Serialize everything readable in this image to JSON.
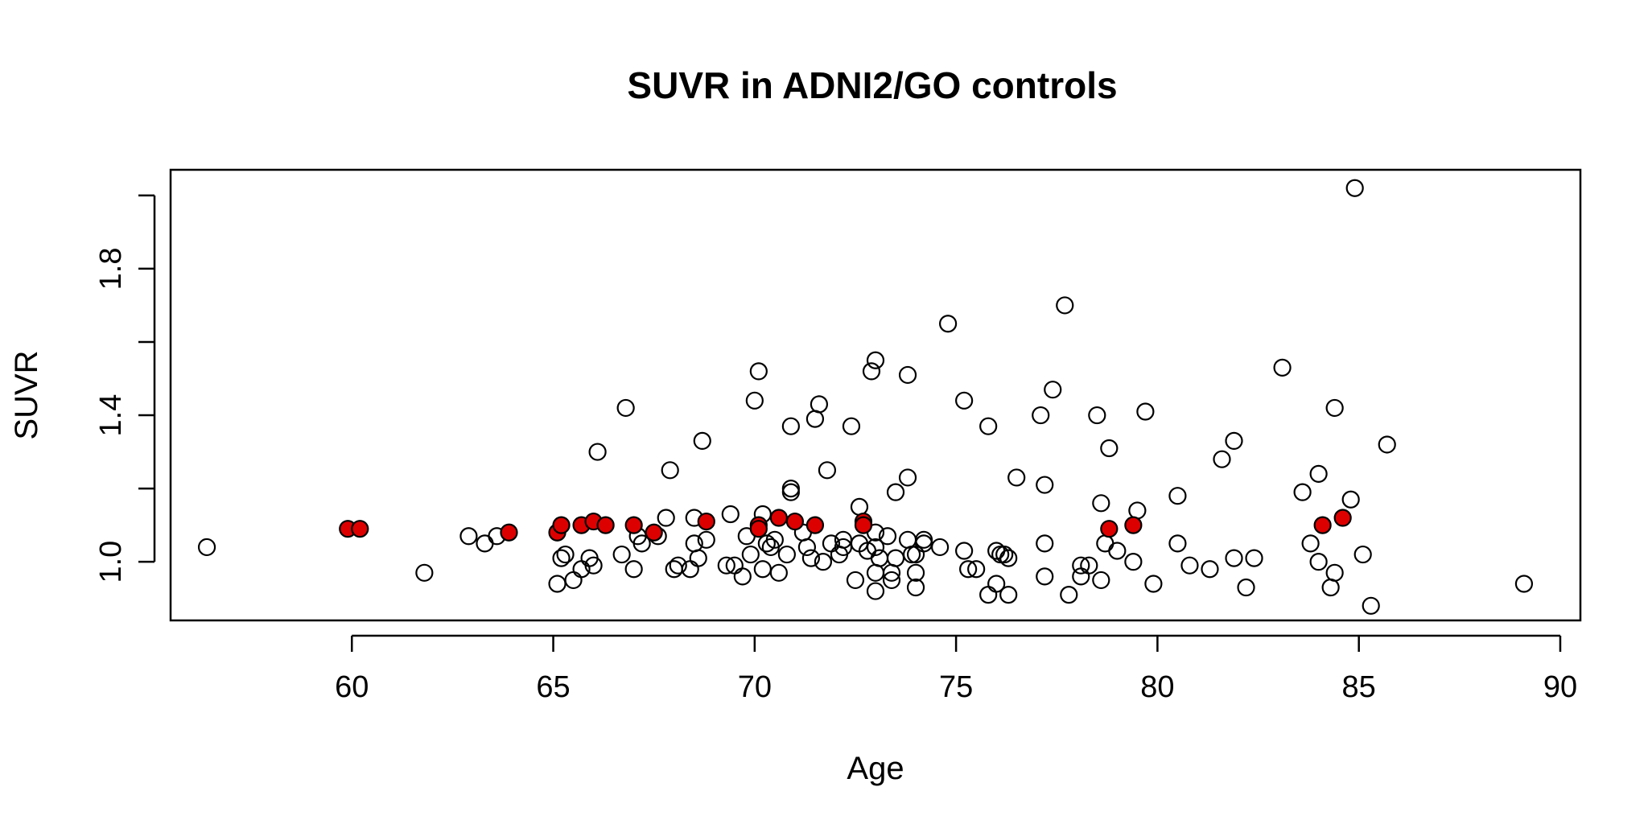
{
  "chart_data": {
    "type": "scatter",
    "title": "SUVR in ADNI2/GO controls",
    "xlabel": "Age",
    "ylabel": "SUVR",
    "xlim": [
      55.5,
      90.5
    ],
    "ylim": [
      0.84,
      2.07
    ],
    "x_ticks": [
      "60",
      "65",
      "70",
      "75",
      "80",
      "85",
      "90"
    ],
    "y_ticks": [
      "1.0",
      "1.2",
      "1.4",
      "1.6",
      "1.8",
      "2.0"
    ],
    "y_tick_labels_shown": [
      "1.0",
      "1.4",
      "1.8"
    ],
    "grid": false,
    "legend": "none",
    "colors": {
      "open_point": "#000000",
      "highlight_fill": "#dd0000"
    },
    "series": [
      {
        "marker": "open-circle",
        "points": [
          [
            56.4,
            1.04
          ],
          [
            61.8,
            0.97
          ],
          [
            62.9,
            1.07
          ],
          [
            63.3,
            1.05
          ],
          [
            63.6,
            1.07
          ],
          [
            65.1,
            0.94
          ],
          [
            65.2,
            1.01
          ],
          [
            65.3,
            1.02
          ],
          [
            65.5,
            0.95
          ],
          [
            65.7,
            0.98
          ],
          [
            65.9,
            1.01
          ],
          [
            66.0,
            0.99
          ],
          [
            66.1,
            1.3
          ],
          [
            66.7,
            1.02
          ],
          [
            66.8,
            1.42
          ],
          [
            67.0,
            0.98
          ],
          [
            67.1,
            1.07
          ],
          [
            67.2,
            1.05
          ],
          [
            67.6,
            1.07
          ],
          [
            67.8,
            1.12
          ],
          [
            67.9,
            1.25
          ],
          [
            68.0,
            0.98
          ],
          [
            68.1,
            0.99
          ],
          [
            68.4,
            0.98
          ],
          [
            68.5,
            1.05
          ],
          [
            68.5,
            1.12
          ],
          [
            68.6,
            1.01
          ],
          [
            68.7,
            1.33
          ],
          [
            68.8,
            1.06
          ],
          [
            69.3,
            0.99
          ],
          [
            69.4,
            1.13
          ],
          [
            69.5,
            0.99
          ],
          [
            69.7,
            0.96
          ],
          [
            69.8,
            1.07
          ],
          [
            69.9,
            1.02
          ],
          [
            70.0,
            1.44
          ],
          [
            70.1,
            1.52
          ],
          [
            70.2,
            1.13
          ],
          [
            70.2,
            0.98
          ],
          [
            70.3,
            1.05
          ],
          [
            70.4,
            1.04
          ],
          [
            70.5,
            1.06
          ],
          [
            70.6,
            0.97
          ],
          [
            70.8,
            1.02
          ],
          [
            70.9,
            1.37
          ],
          [
            70.9,
            1.2
          ],
          [
            70.9,
            1.19
          ],
          [
            71.2,
            1.08
          ],
          [
            71.3,
            1.04
          ],
          [
            71.4,
            1.01
          ],
          [
            71.5,
            1.39
          ],
          [
            71.6,
            1.43
          ],
          [
            71.7,
            1.0
          ],
          [
            71.8,
            1.25
          ],
          [
            71.9,
            1.05
          ],
          [
            72.1,
            1.02
          ],
          [
            72.2,
            1.06
          ],
          [
            72.2,
            1.04
          ],
          [
            72.4,
            1.37
          ],
          [
            72.5,
            0.95
          ],
          [
            72.6,
            1.15
          ],
          [
            72.6,
            1.05
          ],
          [
            72.8,
            1.03
          ],
          [
            72.9,
            1.52
          ],
          [
            73.0,
            1.55
          ],
          [
            73.0,
            0.97
          ],
          [
            73.0,
            1.08
          ],
          [
            73.0,
            1.04
          ],
          [
            73.0,
            0.92
          ],
          [
            73.1,
            1.01
          ],
          [
            73.3,
            1.07
          ],
          [
            73.4,
            0.95
          ],
          [
            73.4,
            0.97
          ],
          [
            73.5,
            1.19
          ],
          [
            73.5,
            1.01
          ],
          [
            73.8,
            1.51
          ],
          [
            73.8,
            1.23
          ],
          [
            73.8,
            1.06
          ],
          [
            73.9,
            1.02
          ],
          [
            74.0,
            1.02
          ],
          [
            74.0,
            0.97
          ],
          [
            74.0,
            0.93
          ],
          [
            74.2,
            1.06
          ],
          [
            74.2,
            1.05
          ],
          [
            74.6,
            1.04
          ],
          [
            74.8,
            1.65
          ],
          [
            75.2,
            1.44
          ],
          [
            75.2,
            1.03
          ],
          [
            75.3,
            0.98
          ],
          [
            75.5,
            0.98
          ],
          [
            75.8,
            1.37
          ],
          [
            75.8,
            0.91
          ],
          [
            76.0,
            1.03
          ],
          [
            76.0,
            0.94
          ],
          [
            76.1,
            1.02
          ],
          [
            76.2,
            1.02
          ],
          [
            76.3,
            1.01
          ],
          [
            76.3,
            0.91
          ],
          [
            76.5,
            1.23
          ],
          [
            77.1,
            1.4
          ],
          [
            77.2,
            1.21
          ],
          [
            77.2,
            1.05
          ],
          [
            77.2,
            0.96
          ],
          [
            77.4,
            1.47
          ],
          [
            77.7,
            1.7
          ],
          [
            77.8,
            0.91
          ],
          [
            78.1,
            0.99
          ],
          [
            78.1,
            0.96
          ],
          [
            78.3,
            0.99
          ],
          [
            78.5,
            1.4
          ],
          [
            78.6,
            0.95
          ],
          [
            78.6,
            1.16
          ],
          [
            78.7,
            1.05
          ],
          [
            78.8,
            1.31
          ],
          [
            79.0,
            1.03
          ],
          [
            79.4,
            1.0
          ],
          [
            79.5,
            1.14
          ],
          [
            79.7,
            1.41
          ],
          [
            79.9,
            0.94
          ],
          [
            80.5,
            1.05
          ],
          [
            80.5,
            1.18
          ],
          [
            80.8,
            0.99
          ],
          [
            81.3,
            0.98
          ],
          [
            81.6,
            1.28
          ],
          [
            81.9,
            1.33
          ],
          [
            81.9,
            1.01
          ],
          [
            82.2,
            0.93
          ],
          [
            82.4,
            1.01
          ],
          [
            83.1,
            1.53
          ],
          [
            83.6,
            1.19
          ],
          [
            83.8,
            1.05
          ],
          [
            84.0,
            1.24
          ],
          [
            84.0,
            1.0
          ],
          [
            84.3,
            0.93
          ],
          [
            84.4,
            1.42
          ],
          [
            84.4,
            0.97
          ],
          [
            84.8,
            1.17
          ],
          [
            84.9,
            2.02
          ],
          [
            85.1,
            1.02
          ],
          [
            85.3,
            0.88
          ],
          [
            85.7,
            1.32
          ],
          [
            89.1,
            0.94
          ]
        ]
      },
      {
        "marker": "filled-circle",
        "color": "#dd0000",
        "points": [
          [
            59.9,
            1.09
          ],
          [
            60.2,
            1.09
          ],
          [
            63.9,
            1.08
          ],
          [
            65.1,
            1.08
          ],
          [
            65.2,
            1.1
          ],
          [
            65.7,
            1.1
          ],
          [
            66.0,
            1.11
          ],
          [
            66.3,
            1.1
          ],
          [
            67.0,
            1.1
          ],
          [
            67.5,
            1.08
          ],
          [
            68.8,
            1.11
          ],
          [
            70.1,
            1.1
          ],
          [
            70.1,
            1.09
          ],
          [
            70.6,
            1.12
          ],
          [
            71.0,
            1.11
          ],
          [
            71.5,
            1.1
          ],
          [
            72.7,
            1.11
          ],
          [
            72.7,
            1.1
          ],
          [
            78.8,
            1.09
          ],
          [
            79.4,
            1.1
          ],
          [
            84.1,
            1.1
          ],
          [
            84.6,
            1.12
          ]
        ]
      }
    ]
  }
}
